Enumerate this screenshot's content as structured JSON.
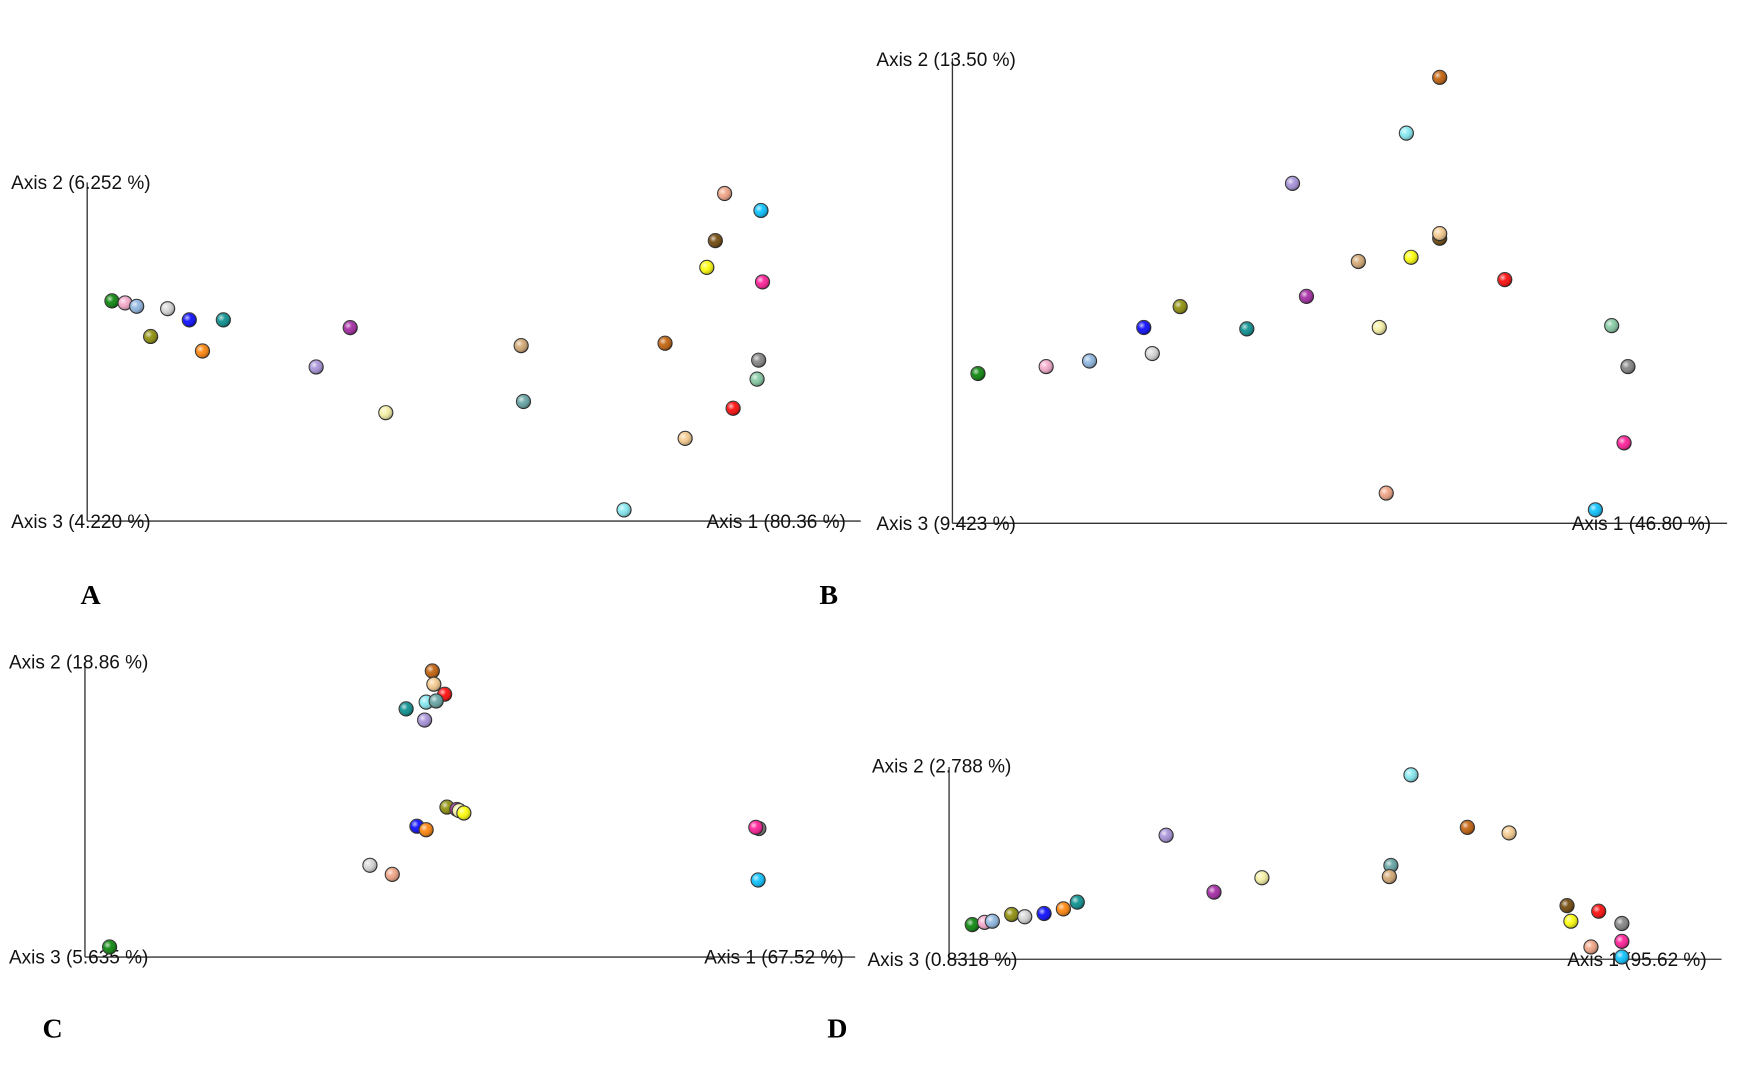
{
  "palette": {
    "green": "#008000",
    "pink": "#f4a6c8",
    "lightblue": "#8ab4e0",
    "silver": "#d4d4d4",
    "olive": "#8a8a00",
    "blue": "#0000ff",
    "teal": "#008b8b",
    "orange": "#ff7f00",
    "lavender": "#a48ed8",
    "purple": "#a020a0",
    "lightyellow": "#f5f0a0",
    "tan": "#d2a56e",
    "cadetblue": "#5fa0a0",
    "lightcyan": "#80e8f0",
    "chocolate": "#c05a00",
    "wheat": "#f5c88a",
    "red": "#ff0000",
    "salmon": "#f0a080",
    "deepskyblue": "#00bfff",
    "darkbrown": "#6b4000",
    "yellow": "#ffff00",
    "deeppink": "#ff1493",
    "gray": "#808080",
    "aquamarine": "#80c8a0"
  },
  "chart_data": [
    {
      "type": "scatter",
      "panel_label": "A",
      "axis1_label": "Axis 1 (80.36 %)",
      "axis2_label": "Axis 2 (6.252 %)",
      "axis3_label": "Axis 3 (4.220 %)",
      "xlim": [
        0,
        100
      ],
      "ylim": [
        0,
        100
      ],
      "grid": false,
      "points": [
        {
          "c": "green",
          "x": 3.2,
          "y": 65.0
        },
        {
          "c": "pink",
          "x": 4.9,
          "y": 64.4
        },
        {
          "c": "lightblue",
          "x": 6.4,
          "y": 63.4
        },
        {
          "c": "silver",
          "x": 10.4,
          "y": 62.7
        },
        {
          "c": "olive",
          "x": 8.2,
          "y": 54.5
        },
        {
          "c": "blue",
          "x": 13.2,
          "y": 59.4
        },
        {
          "c": "teal",
          "x": 17.6,
          "y": 59.4
        },
        {
          "c": "orange",
          "x": 14.9,
          "y": 50.2
        },
        {
          "c": "lavender",
          "x": 29.6,
          "y": 45.5
        },
        {
          "c": "purple",
          "x": 34.0,
          "y": 57.1
        },
        {
          "c": "lightyellow",
          "x": 38.6,
          "y": 32.0
        },
        {
          "c": "tan",
          "x": 56.1,
          "y": 51.8
        },
        {
          "c": "cadetblue",
          "x": 56.4,
          "y": 35.3
        },
        {
          "c": "lightcyan",
          "x": 69.4,
          "y": 3.3
        },
        {
          "c": "chocolate",
          "x": 74.7,
          "y": 52.5
        },
        {
          "c": "wheat",
          "x": 77.3,
          "y": 24.4
        },
        {
          "c": "red",
          "x": 83.5,
          "y": 33.3
        },
        {
          "c": "salmon",
          "x": 82.4,
          "y": 96.7
        },
        {
          "c": "deepskyblue",
          "x": 87.1,
          "y": 91.7
        },
        {
          "c": "darkbrown",
          "x": 81.2,
          "y": 82.8
        },
        {
          "c": "yellow",
          "x": 80.1,
          "y": 74.9
        },
        {
          "c": "deeppink",
          "x": 87.3,
          "y": 70.6
        },
        {
          "c": "gray",
          "x": 86.8,
          "y": 47.5
        },
        {
          "c": "aquamarine",
          "x": 86.6,
          "y": 41.9
        }
      ]
    },
    {
      "type": "scatter",
      "panel_label": "B",
      "axis1_label": "Axis 1 (46.80 %)",
      "axis2_label": "Axis 2 (13.50 %)",
      "axis3_label": "Axis 3 (9.423 %)",
      "xlim": [
        0,
        100
      ],
      "ylim": [
        0,
        100
      ],
      "grid": false,
      "points": [
        {
          "c": "green",
          "x": 3.3,
          "y": 32.2
        },
        {
          "c": "pink",
          "x": 12.1,
          "y": 33.7
        },
        {
          "c": "lightblue",
          "x": 17.7,
          "y": 34.9
        },
        {
          "c": "silver",
          "x": 25.8,
          "y": 36.5
        },
        {
          "c": "blue",
          "x": 24.7,
          "y": 42.1
        },
        {
          "c": "olive",
          "x": 29.4,
          "y": 46.6
        },
        {
          "c": "teal",
          "x": 38.0,
          "y": 41.8
        },
        {
          "c": "purple",
          "x": 45.7,
          "y": 48.8
        },
        {
          "c": "lavender",
          "x": 43.9,
          "y": 73.1
        },
        {
          "c": "tan",
          "x": 52.4,
          "y": 56.3
        },
        {
          "c": "lightyellow",
          "x": 55.1,
          "y": 42.1
        },
        {
          "c": "lightcyan",
          "x": 58.6,
          "y": 83.9
        },
        {
          "c": "yellow",
          "x": 59.2,
          "y": 57.2
        },
        {
          "c": "darkbrown",
          "x": 62.9,
          "y": 61.3
        },
        {
          "c": "wheat",
          "x": 62.9,
          "y": 62.3
        },
        {
          "c": "chocolate",
          "x": 62.9,
          "y": 95.9
        },
        {
          "c": "red",
          "x": 71.3,
          "y": 52.4
        },
        {
          "c": "aquamarine",
          "x": 85.1,
          "y": 42.5
        },
        {
          "c": "gray",
          "x": 87.2,
          "y": 33.7
        },
        {
          "c": "deeppink",
          "x": 86.7,
          "y": 17.3
        },
        {
          "c": "salmon",
          "x": 56.0,
          "y": 6.5
        },
        {
          "c": "deepskyblue",
          "x": 83.0,
          "y": 2.9
        }
      ]
    },
    {
      "type": "scatter",
      "panel_label": "C",
      "axis1_label": "Axis 1 (67.52 %)",
      "axis2_label": "Axis 2 (18.86 %)",
      "axis3_label": "Axis 3 (5.635 %)",
      "xlim": [
        0,
        100
      ],
      "ylim": [
        0,
        100
      ],
      "grid": false,
      "points": [
        {
          "c": "green",
          "x": 3.2,
          "y": 3.4
        },
        {
          "c": "chocolate",
          "x": 45.1,
          "y": 97.3
        },
        {
          "c": "wheat",
          "x": 45.3,
          "y": 92.8
        },
        {
          "c": "red",
          "x": 46.7,
          "y": 89.4
        },
        {
          "c": "lightcyan",
          "x": 44.3,
          "y": 86.7
        },
        {
          "c": "cadetblue",
          "x": 45.6,
          "y": 87.1
        },
        {
          "c": "teal",
          "x": 41.7,
          "y": 84.4
        },
        {
          "c": "lavender",
          "x": 44.1,
          "y": 80.6
        },
        {
          "c": "olive",
          "x": 47.0,
          "y": 51.0
        },
        {
          "c": "purple",
          "x": 48.3,
          "y": 50.2
        },
        {
          "c": "lightyellow",
          "x": 48.6,
          "y": 49.8
        },
        {
          "c": "yellow",
          "x": 49.2,
          "y": 49.0
        },
        {
          "c": "blue",
          "x": 43.1,
          "y": 44.5
        },
        {
          "c": "orange",
          "x": 44.3,
          "y": 43.3
        },
        {
          "c": "silver",
          "x": 37.0,
          "y": 31.2
        },
        {
          "c": "salmon",
          "x": 39.9,
          "y": 28.1
        },
        {
          "c": "gray",
          "x": 87.5,
          "y": 43.7
        },
        {
          "c": "deeppink",
          "x": 87.1,
          "y": 44.1
        },
        {
          "c": "deepskyblue",
          "x": 87.4,
          "y": 26.2
        }
      ]
    },
    {
      "type": "scatter",
      "panel_label": "D",
      "axis1_label": "Axis 1 (95.62 %)",
      "axis2_label": "Axis 2 (2.788 %)",
      "axis3_label": "Axis 3 (0.8318 %)",
      "xlim": [
        0,
        100
      ],
      "ylim": [
        0,
        100
      ],
      "grid": false,
      "points": [
        {
          "c": "green",
          "x": 3.0,
          "y": 18.0
        },
        {
          "c": "pink",
          "x": 4.6,
          "y": 19.2
        },
        {
          "c": "lightblue",
          "x": 5.6,
          "y": 19.8
        },
        {
          "c": "olive",
          "x": 8.1,
          "y": 23.3
        },
        {
          "c": "silver",
          "x": 9.8,
          "y": 22.1
        },
        {
          "c": "blue",
          "x": 12.3,
          "y": 23.8
        },
        {
          "c": "orange",
          "x": 14.8,
          "y": 26.2
        },
        {
          "c": "teal",
          "x": 16.6,
          "y": 29.7
        },
        {
          "c": "lavender",
          "x": 28.1,
          "y": 64.5
        },
        {
          "c": "purple",
          "x": 34.3,
          "y": 34.9
        },
        {
          "c": "lightyellow",
          "x": 40.5,
          "y": 42.4
        },
        {
          "c": "cadetblue",
          "x": 57.2,
          "y": 48.8
        },
        {
          "c": "tan",
          "x": 57.0,
          "y": 43.0
        },
        {
          "c": "lightcyan",
          "x": 59.8,
          "y": 95.9
        },
        {
          "c": "chocolate",
          "x": 67.1,
          "y": 68.6
        },
        {
          "c": "wheat",
          "x": 72.5,
          "y": 65.7
        },
        {
          "c": "darkbrown",
          "x": 80.0,
          "y": 27.9
        },
        {
          "c": "yellow",
          "x": 80.5,
          "y": 19.8
        },
        {
          "c": "red",
          "x": 84.1,
          "y": 25.0
        },
        {
          "c": "salmon",
          "x": 83.1,
          "y": 6.4
        },
        {
          "c": "gray",
          "x": 87.1,
          "y": 18.6
        },
        {
          "c": "deeppink",
          "x": 87.1,
          "y": 9.3
        },
        {
          "c": "deepskyblue",
          "x": 87.1,
          "y": 1.2
        }
      ]
    }
  ]
}
